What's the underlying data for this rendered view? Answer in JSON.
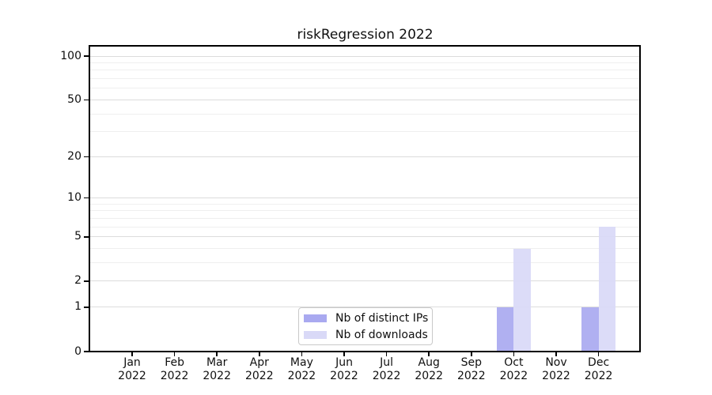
{
  "chart_data": {
    "type": "bar",
    "title": "riskRegression 2022",
    "categories": [
      "Jan 2022",
      "Feb 2022",
      "Mar 2022",
      "Apr 2022",
      "May 2022",
      "Jun 2022",
      "Jul 2022",
      "Aug 2022",
      "Sep 2022",
      "Oct 2022",
      "Nov 2022",
      "Dec 2022"
    ],
    "series": [
      {
        "name": "Nb of distinct IPs",
        "color": "#a9a9f0",
        "values": [
          0,
          0,
          0,
          0,
          0,
          0,
          0,
          0,
          0,
          1,
          0,
          1
        ]
      },
      {
        "name": "Nb of downloads",
        "color": "#d9d9f7",
        "values": [
          0,
          0,
          0,
          0,
          0,
          0,
          0,
          0,
          0,
          4,
          0,
          6
        ]
      }
    ],
    "xlabel": "",
    "ylabel": "",
    "y_axis": {
      "scale": "log1p",
      "major_ticks": [
        0,
        1,
        2,
        5,
        10,
        20,
        50,
        100
      ],
      "minor_gridlines": [
        3,
        4,
        6,
        7,
        8,
        9,
        30,
        40,
        60,
        70,
        80,
        90
      ],
      "top_of_axis_value": 118
    },
    "grid": true,
    "legend_position": "bottom-center-inside"
  },
  "colors": {
    "bar_distinct_ips": "#a9a9f0",
    "bar_downloads": "#d9d9f7",
    "grid_major": "#dcdcdc",
    "grid_minor": "#efefef",
    "axis": "#000000",
    "legend_border": "#c9c9c9",
    "background": "#ffffff",
    "text": "#101010"
  }
}
